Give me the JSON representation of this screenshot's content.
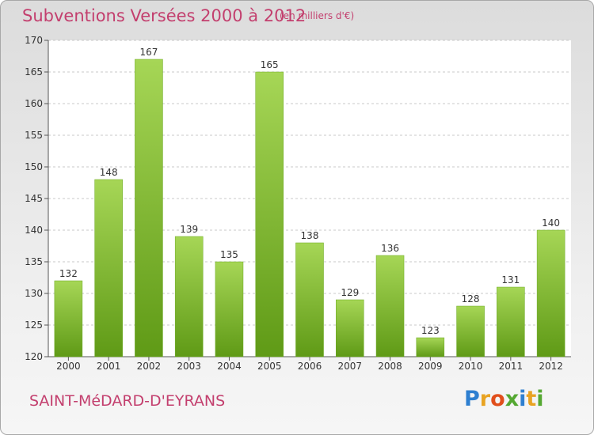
{
  "chart_data": {
    "type": "bar",
    "title": "Subventions Versées 2000 à 2012",
    "subtitle": "(en milliers d'€)",
    "location": "SAINT-MéDARD-D'EYRANS",
    "categories": [
      "2000",
      "2001",
      "2002",
      "2003",
      "2004",
      "2005",
      "2006",
      "2007",
      "2008",
      "2009",
      "2010",
      "2011",
      "2012"
    ],
    "values": [
      132,
      148,
      167,
      139,
      135,
      165,
      138,
      129,
      136,
      123,
      128,
      131,
      140
    ],
    "ylim": [
      120,
      170
    ],
    "yticks": [
      120,
      125,
      130,
      135,
      140,
      145,
      150,
      155,
      160,
      165,
      170
    ],
    "grid": "horizontal dashed",
    "bar_color": "#78b52a",
    "bar_color_light": "#a6d656",
    "bar_color_dark": "#5f9a16"
  },
  "logo": {
    "text": "Proxiti",
    "letter_colors": [
      "#2e7fd0",
      "#e8a322",
      "#e14f1c",
      "#55a832",
      "#2e7fd0",
      "#e8a322",
      "#55a832"
    ]
  }
}
